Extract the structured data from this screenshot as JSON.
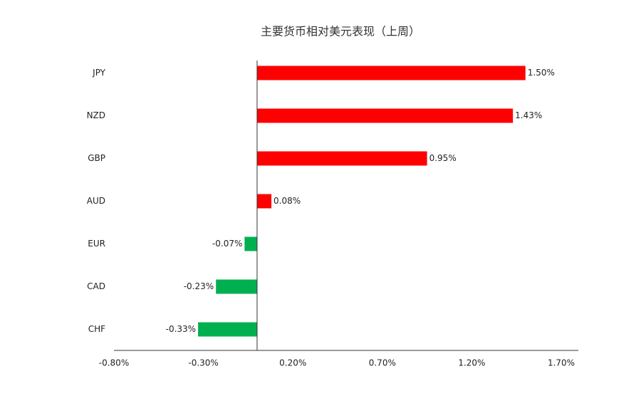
{
  "chart_data": {
    "type": "bar",
    "orientation": "horizontal",
    "title": "主要货币相对美元表现（上周）",
    "categories": [
      "JPY",
      "NZD",
      "GBP",
      "AUD",
      "EUR",
      "CAD",
      "CHF"
    ],
    "values": [
      1.5,
      1.43,
      0.95,
      0.08,
      -0.07,
      -0.23,
      -0.33
    ],
    "value_labels": [
      "1.50%",
      "1.43%",
      "0.95%",
      "0.08%",
      "-0.07%",
      "-0.23%",
      "-0.33%"
    ],
    "colors": [
      "#ff0000",
      "#ff0000",
      "#ff0000",
      "#ff0000",
      "#00b050",
      "#00b050",
      "#00b050"
    ],
    "xlim": [
      -0.8,
      1.7
    ],
    "xticks": [
      {
        "value": -0.8,
        "label": "-0.80%"
      },
      {
        "value": -0.3,
        "label": "-0.30%"
      },
      {
        "value": 0.2,
        "label": "0.20%"
      },
      {
        "value": 0.7,
        "label": "0.70%"
      },
      {
        "value": 1.2,
        "label": "1.20%"
      },
      {
        "value": 1.7,
        "label": "1.70%"
      }
    ],
    "grid": false
  }
}
